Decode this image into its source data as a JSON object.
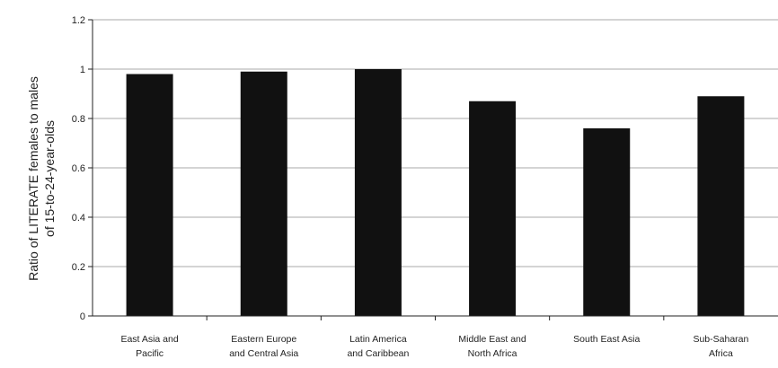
{
  "chart_data": {
    "type": "bar",
    "title": "",
    "xlabel": "",
    "ylabel": "Ratio of LITERATE females to males of 15-to-24-year-olds",
    "ylabel_lines": [
      "Ratio of LITERATE females to males",
      "of 15-to-24-year-olds"
    ],
    "ylim": [
      0,
      1.2
    ],
    "yticks": [
      0,
      0.2,
      0.4,
      0.6,
      0.8,
      1,
      1.2
    ],
    "ytick_labels": [
      "0",
      "0.2",
      "0.4",
      "0.6",
      "0.8",
      "1",
      "1.2"
    ],
    "grid": true,
    "legend": "none",
    "bar_color": "#111111",
    "grid_color": "#aaaaaa",
    "categories": [
      [
        "East Asia and",
        "Pacific"
      ],
      [
        "Eastern Europe",
        "and Central Asia"
      ],
      [
        "Latin America",
        "and Caribbean"
      ],
      [
        "Middle East and",
        "North Africa"
      ],
      [
        "South East Asia"
      ],
      [
        "Sub-Saharan",
        "Africa"
      ]
    ],
    "values": [
      0.98,
      0.99,
      1.0,
      0.87,
      0.76,
      0.89
    ]
  }
}
